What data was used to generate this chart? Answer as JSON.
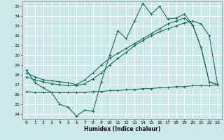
{
  "title": "",
  "xlabel": "Humidex (Indice chaleur)",
  "ylabel": "",
  "background_color": "#cde8ea",
  "grid_color": "#ffffff",
  "line_color": "#1e6b5e",
  "xlim": [
    -0.5,
    23.5
  ],
  "ylim": [
    23.5,
    35.5
  ],
  "yticks": [
    24,
    25,
    26,
    27,
    28,
    29,
    30,
    31,
    32,
    33,
    34,
    35
  ],
  "xticks": [
    0,
    1,
    2,
    3,
    4,
    5,
    6,
    7,
    8,
    9,
    10,
    11,
    12,
    13,
    14,
    15,
    16,
    17,
    18,
    19,
    20,
    21,
    22,
    23
  ],
  "line1_y": [
    28.5,
    27.2,
    26.7,
    26.2,
    25.0,
    24.7,
    23.8,
    24.4,
    24.3,
    27.3,
    30.0,
    32.5,
    31.7,
    33.5,
    35.3,
    34.2,
    35.0,
    33.7,
    33.8,
    34.2,
    33.1,
    30.8,
    27.3,
    27.0
  ],
  "line2_y": [
    27.8,
    27.5,
    27.3,
    27.1,
    27.0,
    26.9,
    26.9,
    27.1,
    27.6,
    28.2,
    29.0,
    29.7,
    30.3,
    31.0,
    31.5,
    32.0,
    32.4,
    32.7,
    33.0,
    33.3,
    33.5,
    33.2,
    32.0,
    27.0
  ],
  "line3_y": [
    28.2,
    27.8,
    27.5,
    27.4,
    27.3,
    27.2,
    27.0,
    27.5,
    28.2,
    29.0,
    29.7,
    30.2,
    30.7,
    31.2,
    31.7,
    32.2,
    32.7,
    33.2,
    33.5,
    33.8,
    33.1,
    30.8,
    27.3,
    27.0
  ],
  "line4_y": [
    26.3,
    26.2,
    26.2,
    26.2,
    26.2,
    26.2,
    26.2,
    26.2,
    26.3,
    26.3,
    26.4,
    26.4,
    26.5,
    26.5,
    26.6,
    26.6,
    26.7,
    26.7,
    26.8,
    26.8,
    26.9,
    26.9,
    26.9,
    27.0
  ]
}
